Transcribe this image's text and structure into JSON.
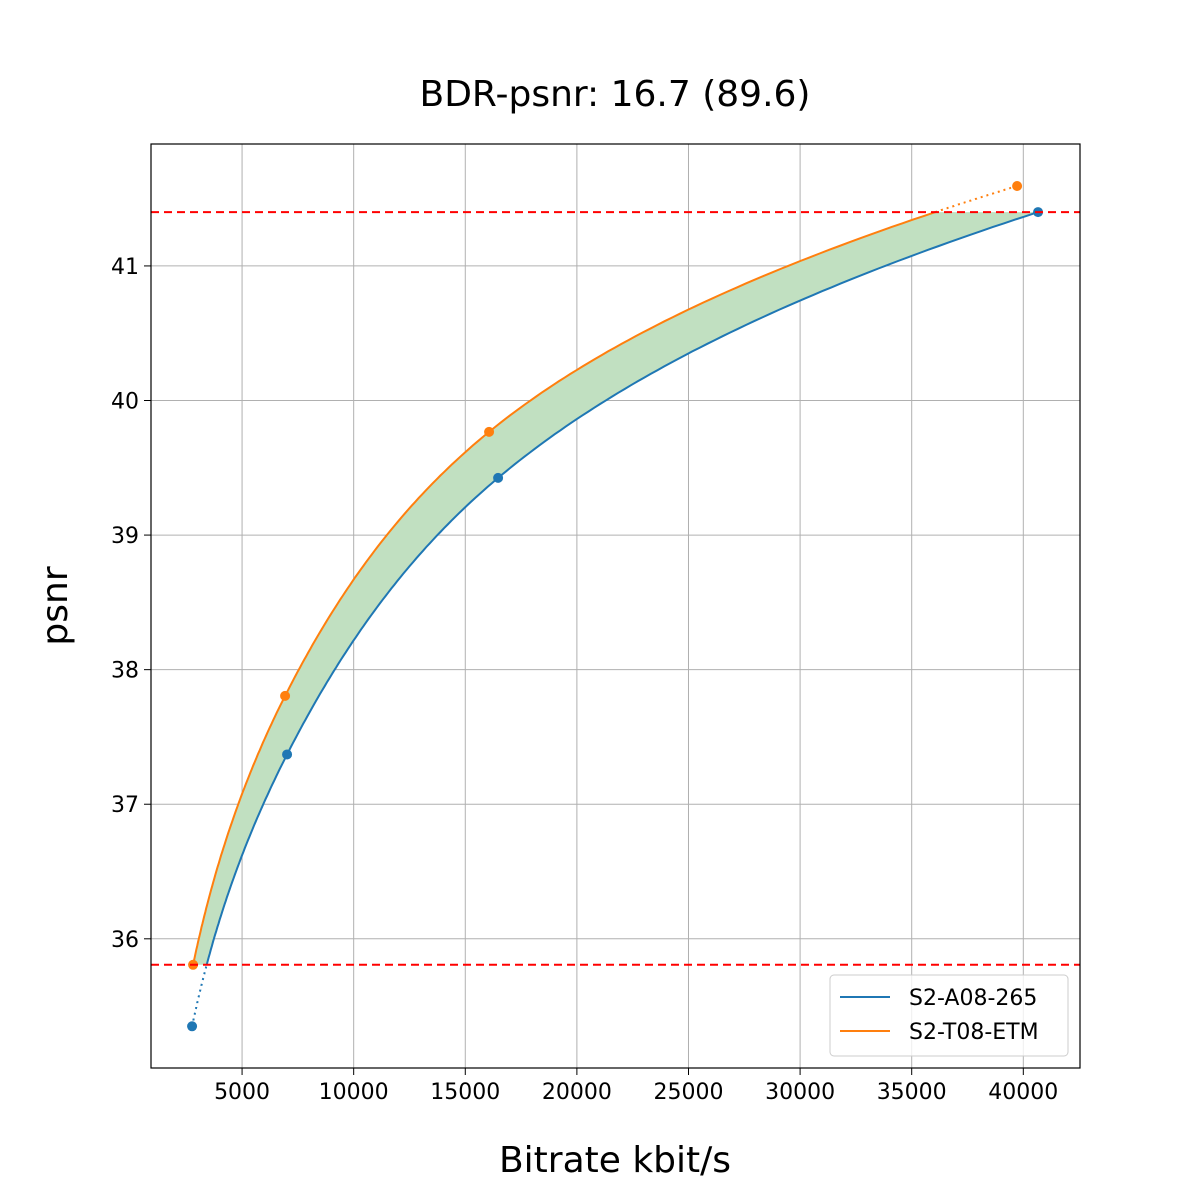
{
  "chart_data": {
    "type": "line",
    "title": "BDR-psnr: 16.7 (89.6)",
    "xlabel": "Bitrate kbit/s",
    "ylabel": "psnr",
    "xlim": [
      920,
      42540
    ],
    "ylim": [
      35.04,
      41.906
    ],
    "xticks": [
      5000,
      10000,
      15000,
      20000,
      25000,
      30000,
      35000,
      40000
    ],
    "yticks": [
      36,
      37,
      38,
      39,
      40,
      41
    ],
    "grid": true,
    "legend_position": "lower-right",
    "series": [
      {
        "name": "S2-A08-265",
        "color": "#1f77b4",
        "x": [
          2760,
          7016,
          16470,
          40660
        ],
        "y": [
          35.35,
          37.37,
          39.425,
          41.4
        ]
      },
      {
        "name": "S2-T08-ETM",
        "color": "#ff7f0e",
        "x": [
          2805,
          6927,
          16066,
          39722
        ],
        "y": [
          35.807,
          37.805,
          39.767,
          41.594
        ]
      }
    ],
    "reference_lines": {
      "y": [
        35.807,
        41.4
      ],
      "color": "#ff0000",
      "style": "dashed"
    },
    "fill_color": "#c1e0c1"
  }
}
